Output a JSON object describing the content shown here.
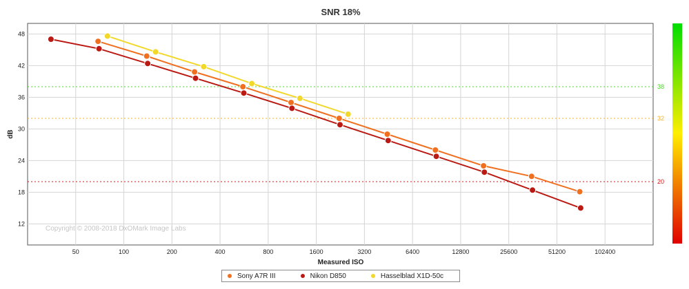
{
  "chart_data": {
    "type": "line",
    "title": "SNR 18%",
    "xlabel": "Measured ISO",
    "ylabel": "dB",
    "x_scale": "log2",
    "xlim": [
      25,
      204800
    ],
    "ylim": [
      8,
      50
    ],
    "x_ticks": [
      50,
      100,
      200,
      400,
      800,
      1600,
      3200,
      6400,
      12800,
      25600,
      51200,
      102400
    ],
    "y_ticks": [
      12,
      18,
      24,
      30,
      36,
      42,
      48
    ],
    "grid": true,
    "watermark": "Copyright © 2008-2018 DxOMark Image Labs",
    "reference_lines": [
      {
        "value": 38,
        "label": "38",
        "color": "#44dd22"
      },
      {
        "value": 32,
        "label": "32",
        "color": "#ffb020"
      },
      {
        "value": 20,
        "label": "20",
        "color": "#dd1111"
      }
    ],
    "colorbar": {
      "colors": [
        "#e00000",
        "#ffee00",
        "#00dd00"
      ],
      "range": [
        8,
        50
      ]
    },
    "series": [
      {
        "name": "Sony A7R III",
        "color": "#f07020",
        "points": [
          [
            69,
            46.6
          ],
          [
            139,
            43.8
          ],
          [
            277,
            40.8
          ],
          [
            556,
            38.0
          ],
          [
            1112,
            35.0
          ],
          [
            2224,
            32.0
          ],
          [
            4448,
            29.0
          ],
          [
            8897,
            26.0
          ],
          [
            17794,
            23.0
          ],
          [
            35588,
            21.0
          ],
          [
            71176,
            18.1
          ]
        ]
      },
      {
        "name": "Nikon D850",
        "color": "#bb1a14",
        "points": [
          [
            35,
            47.0
          ],
          [
            70,
            45.2
          ],
          [
            141,
            42.4
          ],
          [
            281,
            39.6
          ],
          [
            563,
            36.8
          ],
          [
            1126,
            33.9
          ],
          [
            2252,
            30.8
          ],
          [
            4505,
            27.8
          ],
          [
            9009,
            24.8
          ],
          [
            18019,
            21.8
          ],
          [
            36038,
            18.4
          ],
          [
            72076,
            15.0
          ]
        ]
      },
      {
        "name": "Hasselblad X1D-50c",
        "color": "#f2d82a",
        "points": [
          [
            79,
            47.6
          ],
          [
            158,
            44.6
          ],
          [
            316,
            41.8
          ],
          [
            632,
            38.6
          ],
          [
            1264,
            35.8
          ],
          [
            2528,
            32.8
          ]
        ]
      }
    ]
  }
}
